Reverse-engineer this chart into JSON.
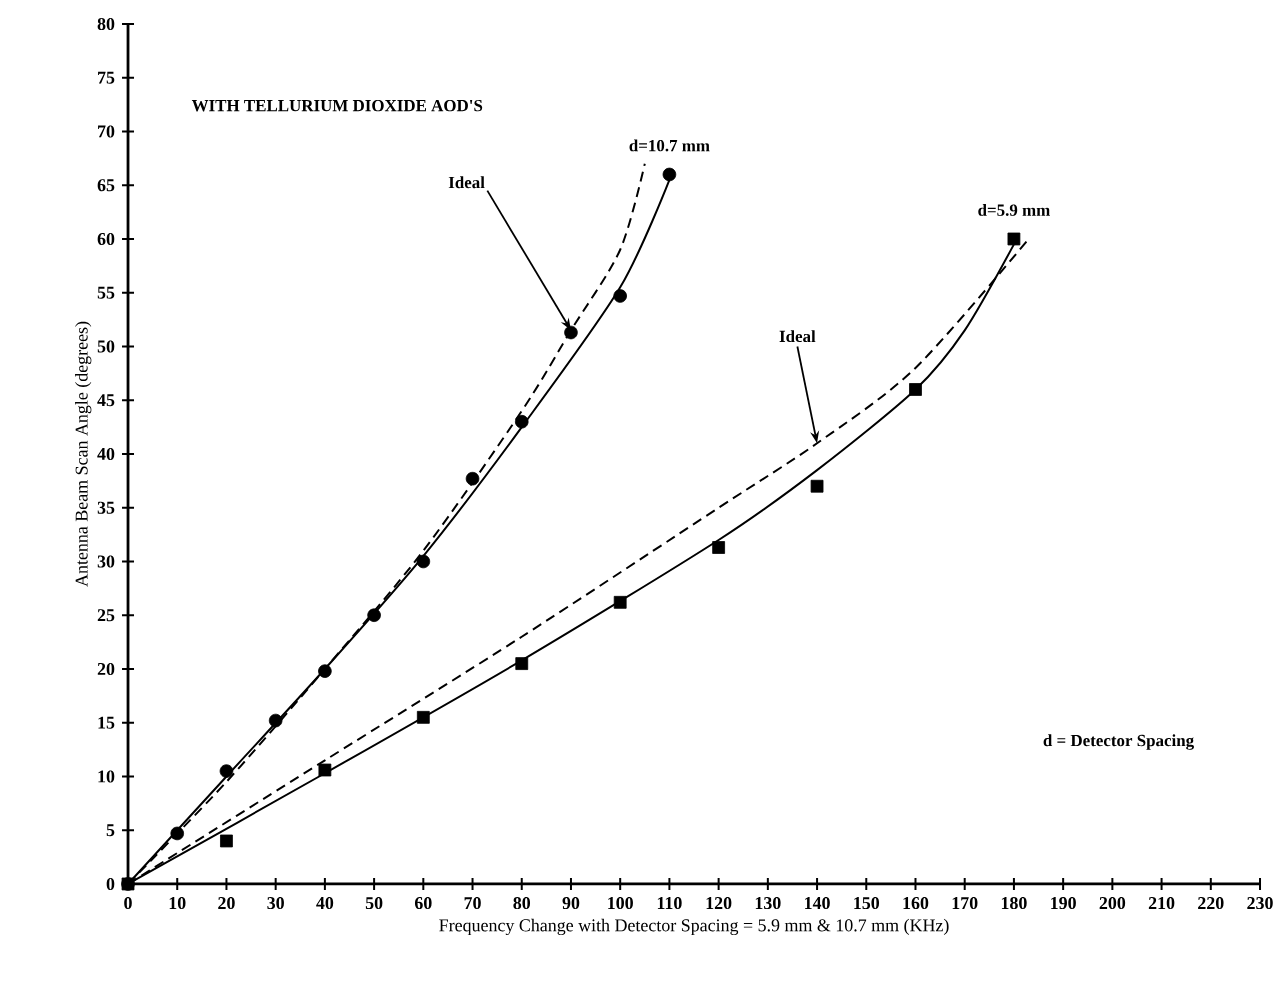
{
  "chart_data": {
    "type": "scatter",
    "title": "WITH TELLURIUM DIOXIDE AOD'S",
    "xlabel": "Frequency Change with Detector Spacing = 5.9 mm & 10.7 mm (KHz)",
    "ylabel": "Antenna Beam Scan Angle (degrees)",
    "xlim": [
      0,
      230
    ],
    "ylim": [
      0,
      80
    ],
    "xticks": [
      0,
      10,
      20,
      30,
      40,
      50,
      60,
      70,
      80,
      90,
      100,
      110,
      120,
      130,
      140,
      150,
      160,
      170,
      180,
      190,
      200,
      210,
      220,
      230
    ],
    "yticks": [
      0,
      5,
      10,
      15,
      20,
      25,
      30,
      35,
      40,
      45,
      50,
      55,
      60,
      65,
      70,
      75,
      80
    ],
    "grid": false,
    "legend": false,
    "series": [
      {
        "name": "d=10.7 mm",
        "color": "#000000",
        "marker": "circle",
        "x": [
          0,
          10,
          20,
          30,
          40,
          50,
          60,
          70,
          80,
          90,
          100,
          110
        ],
        "values": [
          0,
          4.7,
          10.5,
          15.2,
          19.8,
          25,
          30,
          37.7,
          43,
          51.3,
          54.7,
          66
        ]
      },
      {
        "name": "d=5.9 mm",
        "color": "#000000",
        "marker": "square",
        "x": [
          0,
          20,
          40,
          60,
          80,
          100,
          120,
          140,
          160,
          180
        ],
        "values": [
          0,
          4,
          10.6,
          15.5,
          20.5,
          26.2,
          31.3,
          37,
          46,
          60
        ]
      },
      {
        "type": "line",
        "color": "#000000",
        "line_style": "solid",
        "x": [
          0,
          20,
          40,
          60,
          80,
          100,
          110
        ],
        "values": [
          0,
          10,
          20,
          30.5,
          42.5,
          55.5,
          65.5
        ]
      },
      {
        "type": "line",
        "color": "#000000",
        "line_style": "dashed",
        "x": [
          0,
          20,
          40,
          60,
          80,
          90,
          100,
          105
        ],
        "values": [
          0,
          9.5,
          20,
          31,
          44,
          51.5,
          59,
          67
        ]
      },
      {
        "type": "line",
        "color": "#000000",
        "line_style": "solid",
        "x": [
          0,
          40,
          80,
          120,
          140,
          160,
          170,
          180
        ],
        "values": [
          0,
          10.3,
          20.8,
          32,
          38.5,
          46,
          51.5,
          59.5
        ]
      },
      {
        "type": "line",
        "color": "#000000",
        "line_style": "dashed",
        "x": [
          0,
          40,
          80,
          120,
          140,
          160,
          183
        ],
        "values": [
          0,
          11.5,
          23,
          35,
          41,
          48,
          60
        ]
      }
    ],
    "annotations": [
      {
        "text": "Ideal",
        "x": 90,
        "y": 51.5
      },
      {
        "text": "Ideal",
        "x": 140,
        "y": 41
      },
      "d = Detector Spacing"
    ]
  }
}
